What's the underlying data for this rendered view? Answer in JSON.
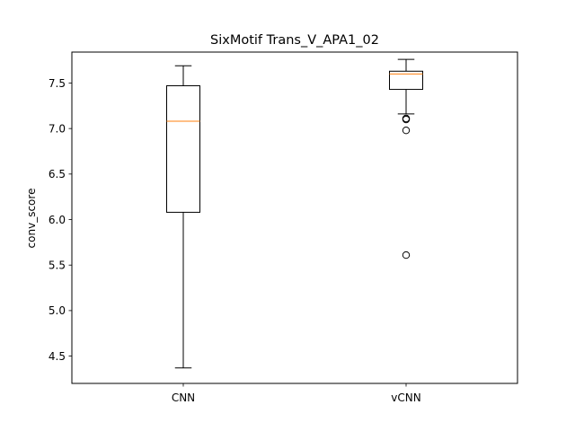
{
  "chart_data": {
    "type": "box",
    "title": "SixMotif Trans_V_APA1_02",
    "xlabel": "",
    "ylabel": "conv_score",
    "ylim": [
      4.2,
      7.84
    ],
    "yticks": [
      4.5,
      5.0,
      5.5,
      6.0,
      6.5,
      7.0,
      7.5
    ],
    "ytick_labels": [
      "4.5",
      "5.0",
      "5.5",
      "6.0",
      "6.5",
      "7.0",
      "7.5"
    ],
    "grid": false,
    "categories": [
      "CNN",
      "vCNN"
    ],
    "boxes": [
      {
        "name": "CNN",
        "whisker_low": 4.37,
        "q1": 6.08,
        "median": 7.08,
        "q3": 7.47,
        "whisker_high": 7.69,
        "outliers": []
      },
      {
        "name": "vCNN",
        "whisker_low": 7.16,
        "q1": 7.43,
        "median": 7.6,
        "q3": 7.63,
        "whisker_high": 7.76,
        "outliers": [
          7.11,
          7.1,
          6.98,
          5.61
        ]
      }
    ],
    "colors": {
      "box": "#000000",
      "median": "#ff7f0e",
      "background": "#ffffff"
    }
  }
}
